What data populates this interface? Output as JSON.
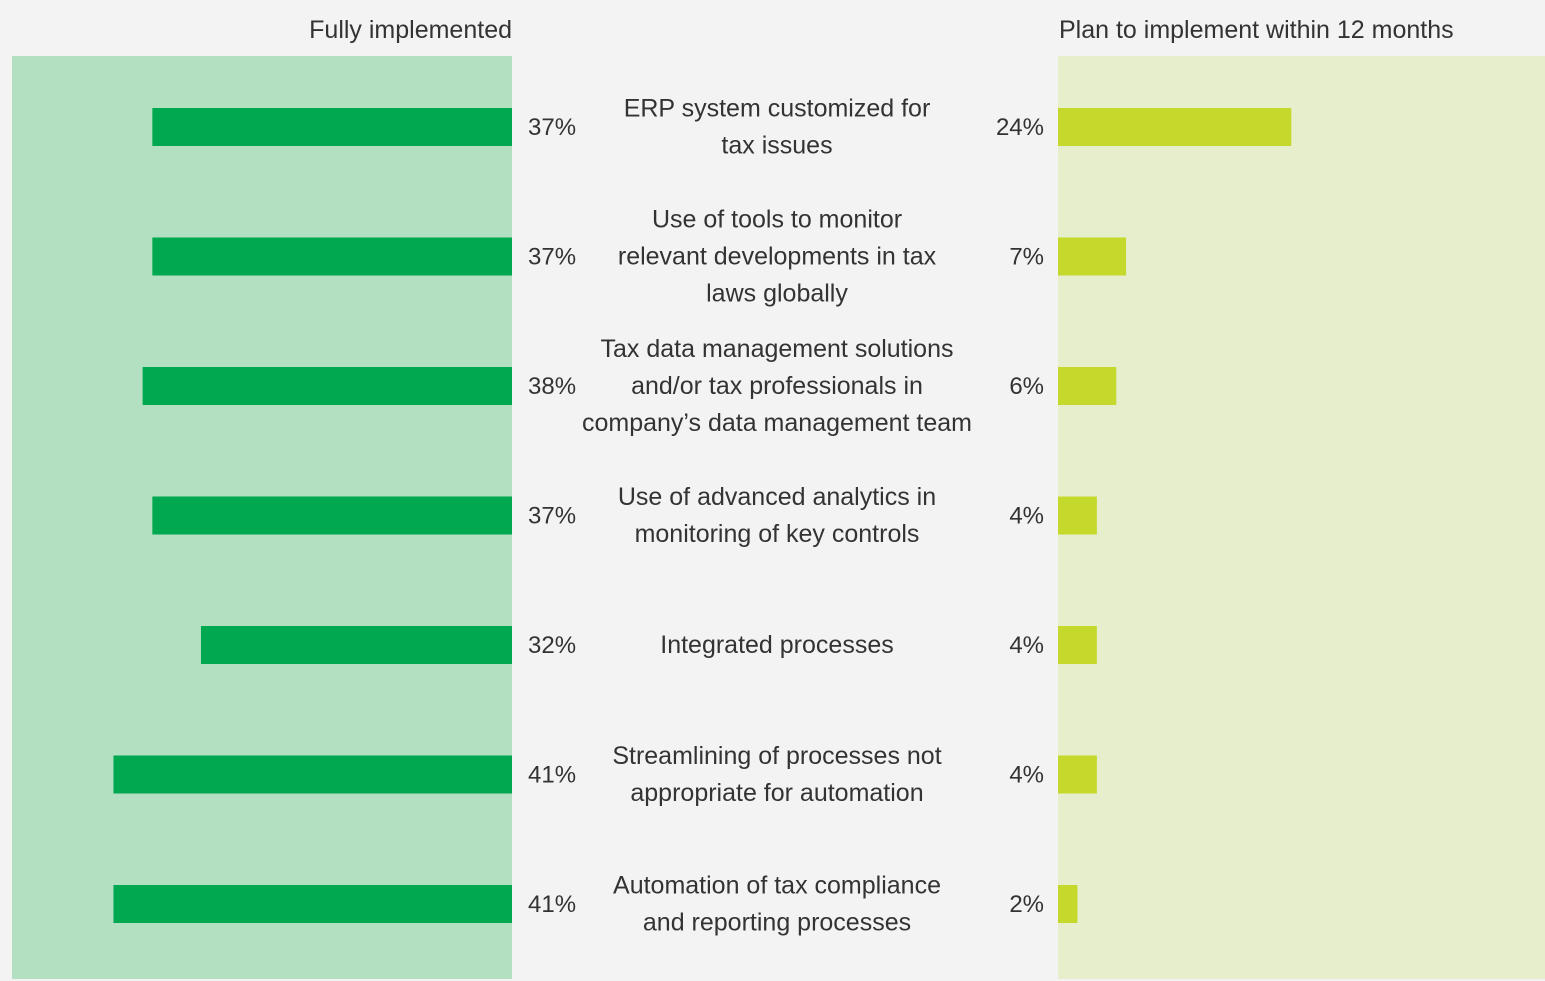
{
  "chart_data": {
    "type": "bar",
    "layout": "diverging-horizontal",
    "series": [
      {
        "name": "Fully implemented",
        "values": [
          37,
          37,
          38,
          37,
          32,
          41,
          41
        ],
        "labels": [
          "37%",
          "37%",
          "38%",
          "37%",
          "32%",
          "41%",
          "41%"
        ]
      },
      {
        "name": "Plan to implement within 12 months",
        "values": [
          24,
          7,
          6,
          4,
          4,
          4,
          2
        ],
        "labels": [
          "24%",
          "7%",
          "6%",
          "4%",
          "4%",
          "4%",
          "2%"
        ]
      }
    ],
    "categories": [
      [
        "ERP system customized for",
        "tax issues"
      ],
      [
        "Use of tools to monitor",
        "relevant developments in tax",
        "laws globally"
      ],
      [
        "Tax data management solutions",
        "and/or tax professionals in",
        "company’s data management team"
      ],
      [
        "Use of advanced analytics in",
        "monitoring of key controls"
      ],
      [
        "Integrated processes"
      ],
      [
        "Streamlining of processes not",
        "appropriate for automation"
      ],
      [
        "Automation of tax compliance",
        "and reporting processes"
      ]
    ],
    "unit": "%",
    "title": "",
    "xlabel": "",
    "ylabel": "",
    "grid": false,
    "colors": {
      "page_background": "#f3f3f3",
      "left_panel_background": "#b3e0c1",
      "right_panel_background": "#e6eecc",
      "left_bar": "#00a84f",
      "right_bar": "#c5d92d",
      "text": "#333333"
    }
  }
}
